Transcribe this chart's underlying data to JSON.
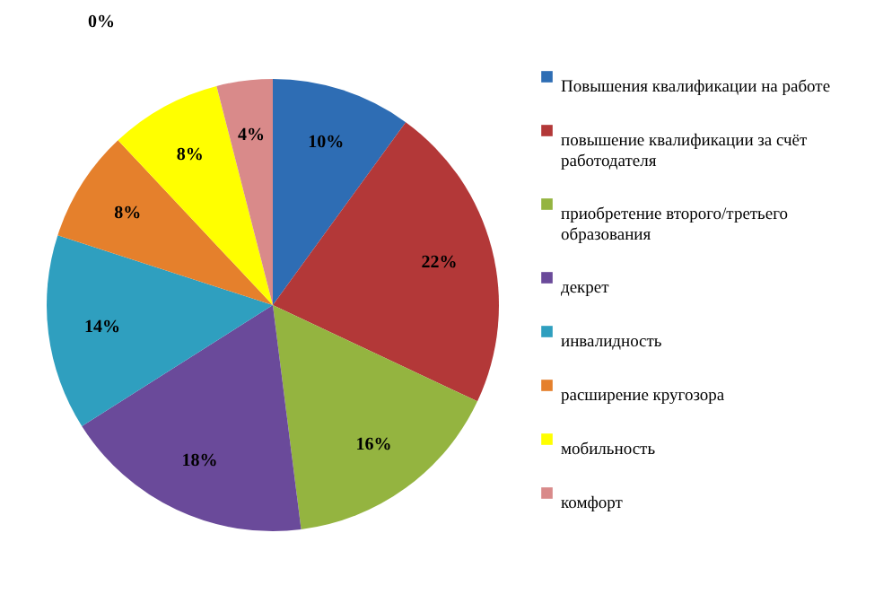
{
  "chart_data": {
    "type": "pie",
    "categories": [
      "Повышения квалификации на работе",
      "повышение квалификации за счёт работодателя",
      "приобретение второго/третьего образования",
      "декрет",
      "инвалидность",
      "расширение кругозора",
      "мобильность",
      "комфорт"
    ],
    "values": [
      10,
      22,
      16,
      18,
      14,
      8,
      8,
      4
    ],
    "colors": [
      "#2e6db4",
      "#b33838",
      "#94b440",
      "#6a4a9a",
      "#2f9fbf",
      "#e5802c",
      "#ffff00",
      "#d98a8a"
    ],
    "value_labels": [
      "10%",
      "22%",
      "16%",
      "18%",
      "14%",
      "8%",
      "8%",
      "4%"
    ],
    "annotations": [
      "0%"
    ],
    "legend": "right"
  }
}
